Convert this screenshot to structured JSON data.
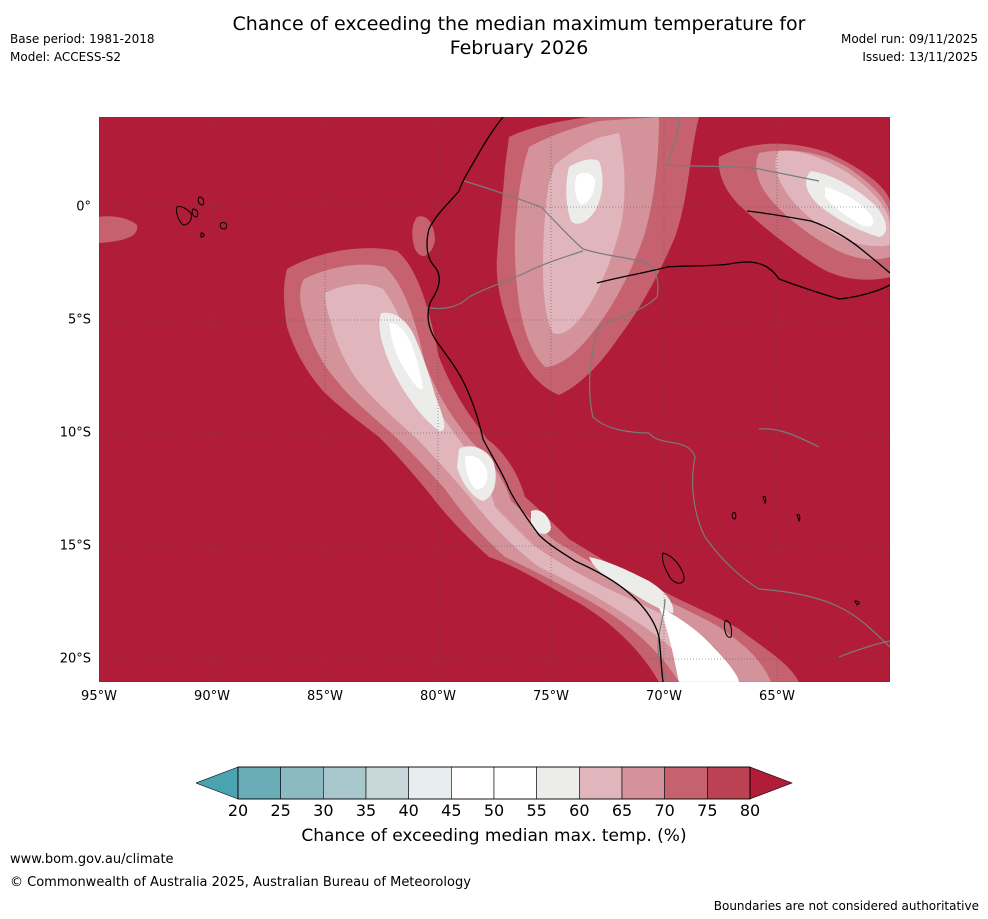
{
  "title": {
    "line1": "Chance of exceeding the median maximum temperature for",
    "line2": "February 2026"
  },
  "meta": {
    "base_period": "Base period: 1981-2018",
    "model": "Model: ACCESS-S2",
    "model_run": "Model run: 09/11/2025",
    "issued": "Issued: 13/11/2025"
  },
  "map": {
    "lat_labels": [
      "0°",
      "5°S",
      "10°S",
      "15°S",
      "20°S"
    ],
    "lon_labels": [
      "95°W",
      "90°W",
      "85°W",
      "80°W",
      "75°W",
      "70°W",
      "65°W"
    ],
    "background_color": "#b11c38"
  },
  "colorbar": {
    "ticks": [
      "20",
      "25",
      "30",
      "35",
      "40",
      "45",
      "50",
      "55",
      "60",
      "65",
      "70",
      "75",
      "80"
    ],
    "colors": [
      "#6aacb8",
      "#8bbac3",
      "#a8c8cd",
      "#c8d8da",
      "#e8eef0",
      "#ffffff",
      "#ffffff",
      "#ececea",
      "#e0b6bc",
      "#d4929b",
      "#c6616f",
      "#bb4252"
    ],
    "under_color": "#4aa3b0",
    "over_color": "#b11c38",
    "label": "Chance of exceeding median max. temp. (%)"
  },
  "footer": {
    "url": "www.bom.gov.au/climate",
    "copyright": "© Commonwealth of Australia 2025, Australian Bureau of Meteorology",
    "note": "Boundaries are not considered authoritative"
  }
}
